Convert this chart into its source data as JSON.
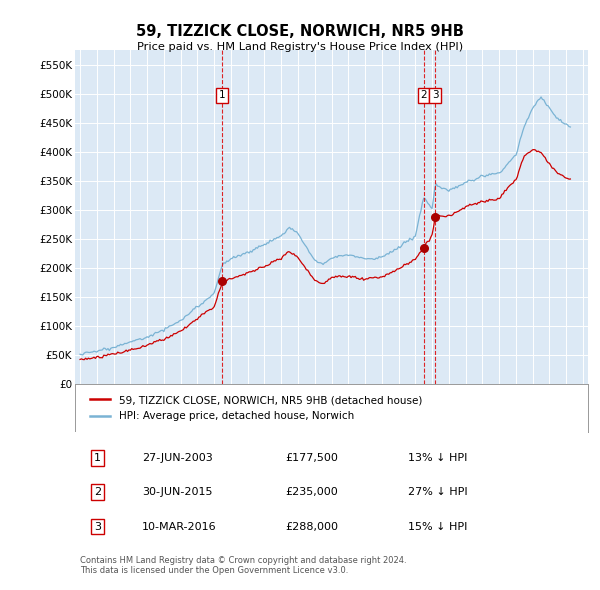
{
  "title": "59, TIZZICK CLOSE, NORWICH, NR5 9HB",
  "subtitle": "Price paid vs. HM Land Registry's House Price Index (HPI)",
  "hpi_color": "#7ab3d4",
  "price_color": "#cc0000",
  "plot_bg_color": "#dce9f5",
  "ylim": [
    0,
    575000
  ],
  "yticks": [
    0,
    50000,
    100000,
    150000,
    200000,
    250000,
    300000,
    350000,
    400000,
    450000,
    500000,
    550000
  ],
  "xlim_start": 1994.7,
  "xlim_end": 2025.3,
  "transactions": [
    {
      "label": "1",
      "year": 2003.49,
      "price": 177500
    },
    {
      "label": "2",
      "year": 2015.49,
      "price": 235000
    },
    {
      "label": "3",
      "year": 2016.19,
      "price": 288000
    }
  ],
  "legend_entries": [
    {
      "label": "59, TIZZICK CLOSE, NORWICH, NR5 9HB (detached house)",
      "color": "#cc0000"
    },
    {
      "label": "HPI: Average price, detached house, Norwich",
      "color": "#7ab3d4"
    }
  ],
  "table_rows": [
    {
      "num": "1",
      "date": "27-JUN-2003",
      "price": "£177,500",
      "info": "13% ↓ HPI"
    },
    {
      "num": "2",
      "date": "30-JUN-2015",
      "price": "£235,000",
      "info": "27% ↓ HPI"
    },
    {
      "num": "3",
      "date": "10-MAR-2016",
      "price": "£288,000",
      "info": "15% ↓ HPI"
    }
  ],
  "footnote": "Contains HM Land Registry data © Crown copyright and database right 2024.\nThis data is licensed under the Open Government Licence v3.0."
}
